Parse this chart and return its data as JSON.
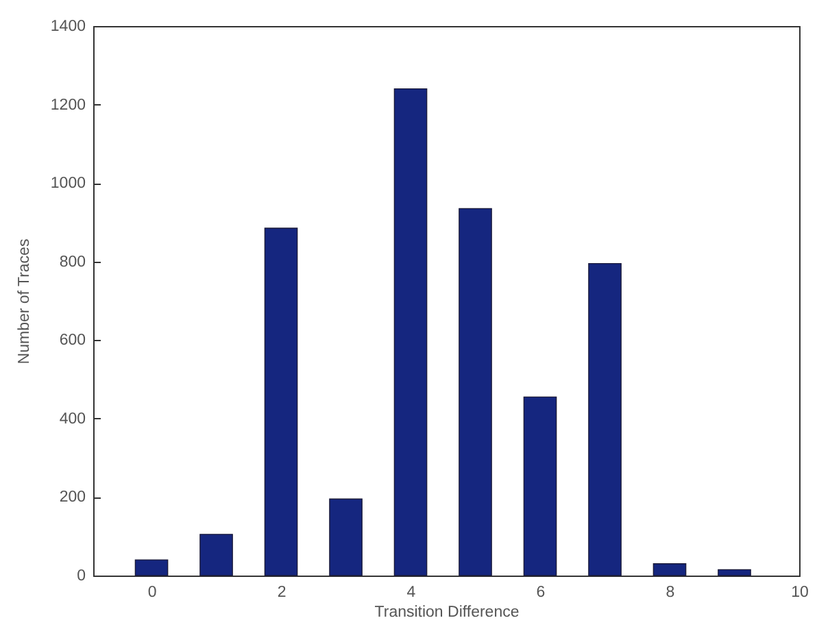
{
  "chart_data": {
    "type": "bar",
    "xlabel": "Transition Difference",
    "ylabel": "Number of Traces",
    "x": [
      0,
      1,
      2,
      3,
      4,
      5,
      6,
      7,
      8,
      9
    ],
    "values": [
      40,
      105,
      885,
      195,
      1240,
      935,
      455,
      795,
      30,
      15
    ],
    "color": "#15267f",
    "xlim": [
      -0.9,
      10
    ],
    "xticks": [
      0,
      2,
      4,
      6,
      8,
      10
    ],
    "ylim": [
      0,
      1400
    ],
    "yticks": [
      0,
      200,
      400,
      600,
      800,
      1000,
      1200,
      1400
    ],
    "grid": false
  }
}
